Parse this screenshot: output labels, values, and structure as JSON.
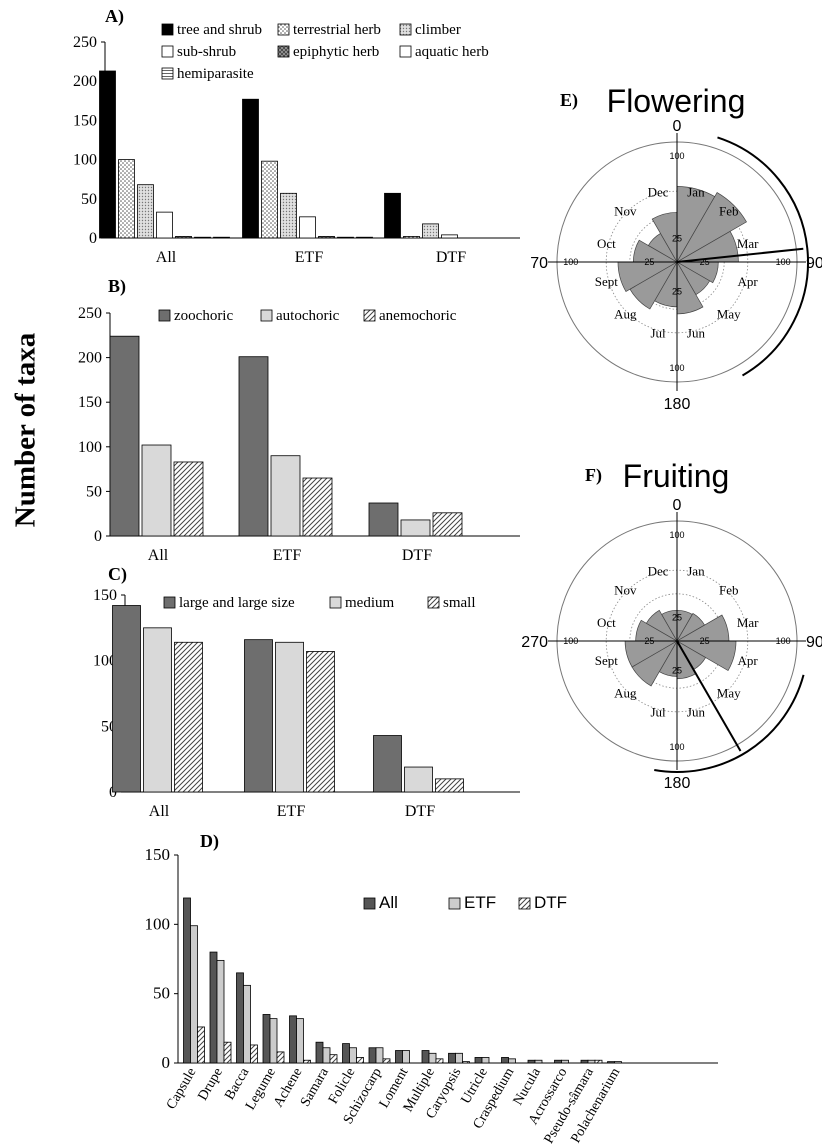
{
  "figure": {
    "ylabel": "Number of taxa"
  },
  "chart_data": [
    {
      "panel": "A)",
      "type": "bar",
      "categories": [
        "All",
        "ETF",
        "DTF"
      ],
      "ylim": [
        0,
        250
      ],
      "yticks": [
        0,
        50,
        100,
        150,
        200,
        250
      ],
      "legend": "top",
      "series": [
        {
          "name": "tree and shrub",
          "values": [
            213,
            177,
            57
          ],
          "color": "#000000",
          "pattern": "solid"
        },
        {
          "name": "terrestrial herb",
          "values": [
            100,
            98,
            2
          ],
          "color": "#ffffff",
          "pattern": "dots"
        },
        {
          "name": "climber",
          "values": [
            68,
            57,
            18
          ],
          "color": "#c8c8c8",
          "pattern": "finedots"
        },
        {
          "name": "sub-shrub",
          "values": [
            33,
            27,
            4
          ],
          "color": "#ffffff",
          "pattern": "solid"
        },
        {
          "name": "epiphytic herb",
          "values": [
            2,
            2,
            0
          ],
          "color": "#8a8a8a",
          "pattern": "crosshatch"
        },
        {
          "name": "aquatic herb",
          "values": [
            1,
            1,
            0
          ],
          "color": "#ffffff",
          "pattern": "solid"
        },
        {
          "name": "hemiparasite",
          "values": [
            1,
            1,
            0
          ],
          "color": "#d8d8d8",
          "pattern": "hlines"
        }
      ]
    },
    {
      "panel": "B)",
      "type": "bar",
      "categories": [
        "All",
        "ETF",
        "DTF"
      ],
      "ylim": [
        0,
        250
      ],
      "yticks": [
        0,
        50,
        100,
        150,
        200,
        250
      ],
      "legend": "top",
      "series": [
        {
          "name": "zoochoric",
          "values": [
            224,
            201,
            37
          ],
          "color": "#6e6e6e",
          "pattern": "solid"
        },
        {
          "name": "autochoric",
          "values": [
            102,
            90,
            18
          ],
          "color": "#d9d9d9",
          "pattern": "solid"
        },
        {
          "name": "anemochoric",
          "values": [
            83,
            65,
            26
          ],
          "color": "#ffffff",
          "pattern": "diag"
        }
      ]
    },
    {
      "panel": "C)",
      "type": "bar",
      "categories": [
        "All",
        "ETF",
        "DTF"
      ],
      "ylim": [
        0,
        150
      ],
      "yticks": [
        0,
        50,
        100,
        150
      ],
      "legend": "top",
      "series": [
        {
          "name": "large and large size",
          "values": [
            142,
            116,
            43
          ],
          "color": "#6e6e6e",
          "pattern": "solid"
        },
        {
          "name": "medium",
          "values": [
            125,
            114,
            19
          ],
          "color": "#d9d9d9",
          "pattern": "solid"
        },
        {
          "name": "small",
          "values": [
            114,
            107,
            10
          ],
          "color": "#ffffff",
          "pattern": "diag"
        }
      ]
    },
    {
      "panel": "D)",
      "type": "bar",
      "categories": [
        "Capsule",
        "Drupe",
        "Bacca",
        "Legume",
        "Achene",
        "Samara",
        "Folicle",
        "Schizocarp",
        "Loment",
        "Multiple",
        "Caryopsis",
        "Utricle",
        "Craspedium",
        "Nucula",
        "Acrossarco",
        "Pseudo-sâmara",
        "Polachenarium"
      ],
      "ylim": [
        0,
        150
      ],
      "yticks": [
        0,
        50,
        100,
        150
      ],
      "legend": "center",
      "series": [
        {
          "name": "All",
          "values": [
            119,
            80,
            65,
            35,
            34,
            15,
            14,
            11,
            9,
            9,
            7,
            4,
            4,
            2,
            2,
            2,
            1
          ],
          "color": "#555555",
          "pattern": "solid"
        },
        {
          "name": "ETF",
          "values": [
            99,
            74,
            56,
            32,
            32,
            11,
            11,
            11,
            9,
            7,
            7,
            4,
            3,
            2,
            2,
            2,
            1
          ],
          "color": "#cccccc",
          "pattern": "solid"
        },
        {
          "name": "DTF",
          "values": [
            26,
            15,
            13,
            8,
            2,
            6,
            4,
            3,
            0,
            3,
            1,
            0,
            0,
            0,
            0,
            2,
            0
          ],
          "color": "#ffffff",
          "pattern": "diag"
        }
      ]
    },
    {
      "panel": "E)",
      "title": "Flowering",
      "type": "polar",
      "months": [
        "Jan",
        "Feb",
        "Mar",
        "Apr",
        "May",
        "Jun",
        "Jul",
        "Aug",
        "Sept",
        "Oct",
        "Nov",
        "Dec"
      ],
      "values": [
        64,
        68,
        52,
        35,
        32,
        44,
        38,
        46,
        50,
        37,
        28,
        42
      ],
      "rmax": 100,
      "inner_ring": 25,
      "compass": [
        "0",
        "90",
        "180",
        "70"
      ],
      "axis_ticks": [
        "100",
        "25"
      ],
      "mean_angle_deg": 84,
      "arc_deg": [
        18,
        150
      ],
      "color": "#9a9a9a"
    },
    {
      "panel": "F)",
      "title": "Fruiting",
      "type": "polar",
      "months": [
        "Jan",
        "Feb",
        "Mar",
        "Apr",
        "May",
        "Jun",
        "Jul",
        "Aug",
        "Sept",
        "Oct",
        "Nov",
        "Dec"
      ],
      "values": [
        26,
        27,
        44,
        50,
        28,
        32,
        30,
        44,
        44,
        35,
        30,
        26
      ],
      "rmax": 100,
      "inner_ring": 25,
      "compass": [
        "0",
        "90",
        "180",
        "270"
      ],
      "axis_ticks": [
        "100",
        "25"
      ],
      "mean_angle_deg": 150,
      "arc_deg": [
        105,
        190
      ],
      "color": "#9a9a9a"
    }
  ]
}
